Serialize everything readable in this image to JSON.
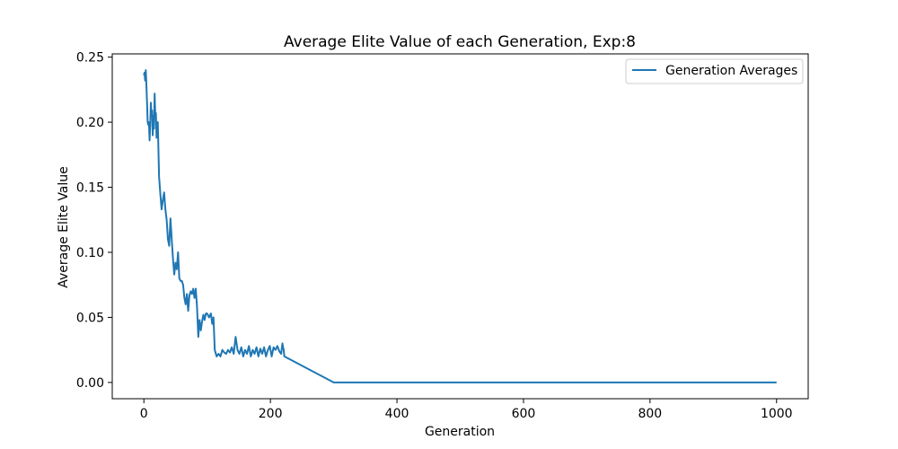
{
  "chart_data": {
    "type": "line",
    "title": "Average Elite Value of each Generation, Exp:8",
    "xlabel": "Generation",
    "ylabel": "Average Elite Value",
    "xlim": [
      -50,
      1050
    ],
    "ylim": [
      -0.0125,
      0.2525
    ],
    "xticks": [
      0,
      200,
      400,
      600,
      800,
      1000
    ],
    "xtick_labels": [
      "0",
      "200",
      "400",
      "600",
      "800",
      "1000"
    ],
    "yticks": [
      0.0,
      0.05,
      0.1,
      0.15,
      0.2,
      0.25
    ],
    "ytick_labels": [
      "0.00",
      "0.05",
      "0.10",
      "0.15",
      "0.20",
      "0.25"
    ],
    "grid": false,
    "legend_position": "top-right",
    "series": [
      {
        "name": "Generation Averages",
        "color": "#1f77b4",
        "x": [
          0,
          1,
          2,
          3,
          4,
          5,
          6,
          7,
          8,
          9,
          10,
          11,
          12,
          13,
          14,
          15,
          16,
          17,
          18,
          19,
          20,
          22,
          24,
          26,
          28,
          30,
          32,
          34,
          36,
          38,
          40,
          42,
          44,
          46,
          48,
          50,
          52,
          54,
          56,
          58,
          60,
          62,
          64,
          66,
          68,
          70,
          72,
          74,
          76,
          78,
          80,
          82,
          84,
          86,
          88,
          90,
          92,
          94,
          96,
          98,
          100,
          103,
          106,
          108,
          110,
          112,
          115,
          118,
          121,
          124,
          127,
          130,
          133,
          136,
          139,
          142,
          145,
          148,
          151,
          154,
          157,
          160,
          163,
          166,
          169,
          172,
          175,
          178,
          181,
          184,
          187,
          190,
          193,
          196,
          199,
          202,
          205,
          208,
          211,
          214,
          217,
          219,
          220,
          221,
          222,
          300,
          400,
          500,
          600,
          700,
          800,
          900,
          1000
        ],
        "y": [
          0.236,
          0.238,
          0.232,
          0.24,
          0.228,
          0.215,
          0.2,
          0.198,
          0.2,
          0.186,
          0.197,
          0.215,
          0.205,
          0.209,
          0.19,
          0.205,
          0.195,
          0.222,
          0.205,
          0.207,
          0.188,
          0.2,
          0.158,
          0.145,
          0.133,
          0.14,
          0.146,
          0.133,
          0.125,
          0.11,
          0.105,
          0.126,
          0.11,
          0.095,
          0.083,
          0.092,
          0.087,
          0.1,
          0.08,
          0.078,
          0.078,
          0.075,
          0.065,
          0.06,
          0.068,
          0.055,
          0.067,
          0.07,
          0.068,
          0.072,
          0.065,
          0.072,
          0.058,
          0.035,
          0.048,
          0.04,
          0.047,
          0.052,
          0.048,
          0.053,
          0.053,
          0.05,
          0.053,
          0.045,
          0.05,
          0.025,
          0.02,
          0.022,
          0.02,
          0.025,
          0.023,
          0.022,
          0.025,
          0.023,
          0.027,
          0.022,
          0.035,
          0.025,
          0.022,
          0.027,
          0.02,
          0.025,
          0.022,
          0.028,
          0.02,
          0.025,
          0.022,
          0.027,
          0.02,
          0.026,
          0.022,
          0.027,
          0.02,
          0.025,
          0.028,
          0.02,
          0.027,
          0.025,
          0.028,
          0.024,
          0.022,
          0.03,
          0.027,
          0.025,
          0.02,
          0.0,
          0.0,
          0.0,
          0.0,
          0.0,
          0.0,
          0.0,
          0.0
        ]
      }
    ]
  }
}
